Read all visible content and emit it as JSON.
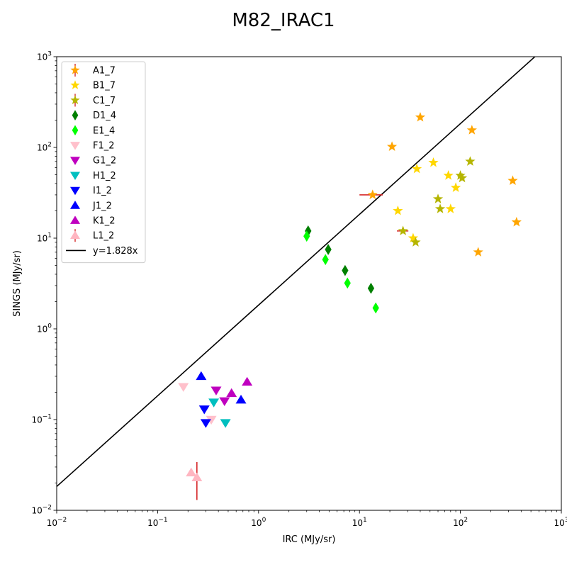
{
  "chart_data": {
    "type": "scatter",
    "title": "M82_IRAC1",
    "xlabel": "IRC (MJy/sr)",
    "ylabel": "SINGS (MJy/sr)",
    "xscale": "log",
    "yscale": "log",
    "xlim": [
      0.01,
      1000
    ],
    "ylim": [
      0.01,
      1000
    ],
    "x_ticks": [
      {
        "value": 0.01,
        "base": "10",
        "exp": "−2"
      },
      {
        "value": 0.1,
        "base": "10",
        "exp": "−1"
      },
      {
        "value": 1,
        "base": "10",
        "exp": "0"
      },
      {
        "value": 10,
        "base": "10",
        "exp": "1"
      },
      {
        "value": 100,
        "base": "10",
        "exp": "2"
      },
      {
        "value": 1000,
        "base": "10",
        "exp": "3"
      }
    ],
    "y_ticks": [
      {
        "value": 0.01,
        "base": "10",
        "exp": "−2"
      },
      {
        "value": 0.1,
        "base": "10",
        "exp": "−1"
      },
      {
        "value": 1,
        "base": "10",
        "exp": "0"
      },
      {
        "value": 10,
        "base": "10",
        "exp": "1"
      },
      {
        "value": 100,
        "base": "10",
        "exp": "2"
      },
      {
        "value": 1000,
        "base": "10",
        "exp": "3"
      }
    ],
    "grid": false,
    "legend_position": "top-left",
    "series": [
      {
        "name": "A1_7",
        "marker": "star",
        "color": "#ffa500",
        "points": [
          [
            13.5,
            30
          ],
          [
            21,
            102
          ],
          [
            40,
            215
          ],
          [
            130,
            155
          ],
          [
            150,
            7
          ],
          [
            330,
            43
          ],
          [
            360,
            15
          ]
        ],
        "xerr": [
          [
            13.5,
            3.5
          ]
        ]
      },
      {
        "name": "B1_7",
        "marker": "star",
        "color": "#ffd700",
        "points": [
          [
            24,
            20
          ],
          [
            34,
            10
          ],
          [
            37,
            58
          ],
          [
            54,
            68
          ],
          [
            76,
            49
          ],
          [
            80,
            21
          ],
          [
            90,
            36
          ]
        ]
      },
      {
        "name": "C1_7",
        "marker": "star",
        "color": "#b5b500",
        "points": [
          [
            27,
            12
          ],
          [
            36,
            9
          ],
          [
            60,
            27
          ],
          [
            63,
            21
          ],
          [
            100,
            49
          ],
          [
            104,
            46
          ],
          [
            125,
            70
          ]
        ],
        "xerr": [
          [
            27,
            3.5
          ]
        ]
      },
      {
        "name": "D1_4",
        "marker": "diamond",
        "color": "#008000",
        "points": [
          [
            3.1,
            12
          ],
          [
            4.9,
            7.5
          ],
          [
            7.2,
            4.4
          ],
          [
            13,
            2.8
          ]
        ]
      },
      {
        "name": "E1_4",
        "marker": "diamond",
        "color": "#00ff00",
        "points": [
          [
            3.0,
            10.5
          ],
          [
            4.6,
            5.8
          ],
          [
            7.6,
            3.2
          ],
          [
            14.5,
            1.7
          ]
        ]
      },
      {
        "name": "F1_2",
        "marker": "triangle-down",
        "color": "#ffc0cb",
        "points": [
          [
            0.18,
            0.23
          ],
          [
            0.34,
            0.1
          ]
        ]
      },
      {
        "name": "G1_2",
        "marker": "triangle-down",
        "color": "#bf00bf",
        "points": [
          [
            0.38,
            0.21
          ],
          [
            0.46,
            0.16
          ]
        ]
      },
      {
        "name": "H1_2",
        "marker": "triangle-down",
        "color": "#00bfbf",
        "points": [
          [
            0.36,
            0.155
          ],
          [
            0.47,
            0.092
          ]
        ]
      },
      {
        "name": "I1_2",
        "marker": "triangle-down",
        "color": "#0000ff",
        "points": [
          [
            0.29,
            0.13
          ],
          [
            0.3,
            0.092
          ]
        ]
      },
      {
        "name": "J1_2",
        "marker": "triangle-up",
        "color": "#0000ff",
        "points": [
          [
            0.27,
            0.3
          ],
          [
            0.67,
            0.165
          ]
        ]
      },
      {
        "name": "K1_2",
        "marker": "triangle-up",
        "color": "#bf00bf",
        "points": [
          [
            0.54,
            0.195
          ],
          [
            0.77,
            0.26
          ]
        ]
      },
      {
        "name": "L1_2",
        "marker": "triangle-up",
        "color": "#ffb6c1",
        "points": [
          [
            0.215,
            0.026
          ],
          [
            0.245,
            0.023
          ]
        ],
        "yerr": [
          [
            0.245,
            0.013,
            0.034
          ]
        ]
      }
    ],
    "line": {
      "name": "y=1.828x",
      "slope": 1.828,
      "color": "#000000"
    },
    "errorbar_color": "#d62728"
  }
}
